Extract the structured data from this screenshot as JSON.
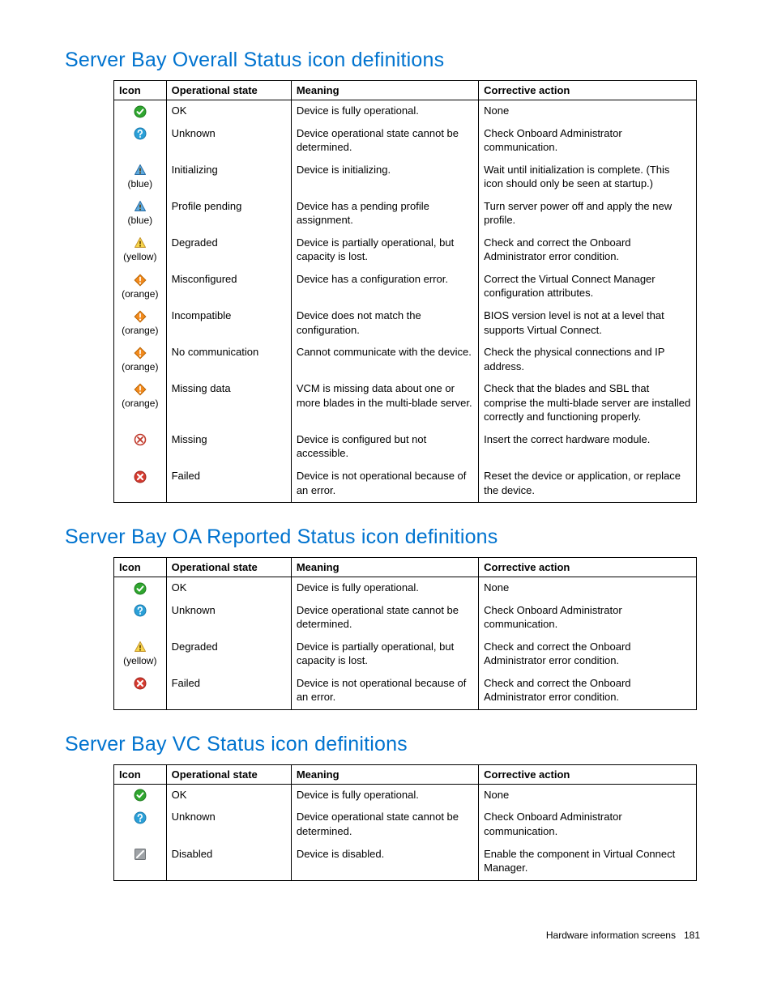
{
  "colors": {
    "heading": "#0073cf",
    "text": "#000000",
    "border": "#000000",
    "ok_fill": "#2fa62f",
    "ok_check": "#ffffff",
    "unknown_fill": "#2aa0d8",
    "unknown_glyph": "#ffffff",
    "blue_warn_fill": "#5da9dd",
    "blue_warn_border": "#2a6ea6",
    "yellow_warn_fill": "#f7d54a",
    "yellow_warn_border": "#c4952e",
    "orange_alert_fill": "#f28a1c",
    "orange_alert_glyph": "#ffffff",
    "missing_ring": "#c0392b",
    "missing_x": "#c0392b",
    "failed_fill": "#d63a2f",
    "failed_x": "#ffffff",
    "disabled_fill": "#9ea2a6",
    "disabled_slash": "#ffffff",
    "warn_bang": "#5a3a00"
  },
  "headers": [
    "Icon",
    "Operational state",
    "Meaning",
    "Corrective action"
  ],
  "sections": [
    {
      "title": "Server Bay Overall Status icon definitions",
      "rows": [
        {
          "icon": "ok",
          "caption": "",
          "state": "OK",
          "meaning": "Device is fully operational.",
          "action": "None"
        },
        {
          "icon": "unknown",
          "caption": "",
          "state": "Unknown",
          "meaning": "Device operational state cannot be determined.",
          "action": "Check Onboard Administrator communication."
        },
        {
          "icon": "warn-blue",
          "caption": "(blue)",
          "state": "Initializing",
          "meaning": "Device is initializing.",
          "action": "Wait until initialization is complete. (This icon should only be seen at startup.)"
        },
        {
          "icon": "warn-blue",
          "caption": "(blue)",
          "state": "Profile pending",
          "meaning": "Device has a pending profile assignment.",
          "action": "Turn server power off and apply the new profile."
        },
        {
          "icon": "warn-yellow",
          "caption": "(yellow)",
          "state": "Degraded",
          "meaning": "Device is partially operational, but capacity is lost.",
          "action": "Check and correct the Onboard Administrator error condition."
        },
        {
          "icon": "alert-orange",
          "caption": "(orange)",
          "state": "Misconfigured",
          "meaning": "Device has a configuration error.",
          "action": "Correct the Virtual Connect Manager configuration attributes."
        },
        {
          "icon": "alert-orange",
          "caption": "(orange)",
          "state": "Incompatible",
          "meaning": "Device does not match the configuration.",
          "action": "BIOS version level is not at a level that supports Virtual Connect."
        },
        {
          "icon": "alert-orange",
          "caption": "(orange)",
          "state": "No communication",
          "meaning": "Cannot communicate with the device.",
          "action": "Check the physical connections and IP address."
        },
        {
          "icon": "alert-orange",
          "caption": "(orange)",
          "state": "Missing data",
          "meaning": "VCM is missing data about one or more blades in the multi-blade server.",
          "action": "Check that the blades and SBL that comprise the multi-blade server are installed correctly and functioning properly."
        },
        {
          "icon": "missing",
          "caption": "",
          "state": "Missing",
          "meaning": "Device is configured but not accessible.",
          "action": "Insert the correct hardware module."
        },
        {
          "icon": "failed",
          "caption": "",
          "state": "Failed",
          "meaning": "Device is not operational because of an error.",
          "action": "Reset the device or application, or replace the device."
        }
      ]
    },
    {
      "title": "Server Bay OA Reported Status icon definitions",
      "rows": [
        {
          "icon": "ok",
          "caption": "",
          "state": "OK",
          "meaning": "Device is fully operational.",
          "action": "None"
        },
        {
          "icon": "unknown",
          "caption": "",
          "state": "Unknown",
          "meaning": "Device operational state cannot be determined.",
          "action": "Check Onboard Administrator communication."
        },
        {
          "icon": "warn-yellow",
          "caption": "(yellow)",
          "state": "Degraded",
          "meaning": "Device is partially operational, but capacity is lost.",
          "action": "Check and correct the Onboard Administrator error condition."
        },
        {
          "icon": "failed",
          "caption": "",
          "state": "Failed",
          "meaning": "Device is not operational because of an error.",
          "action": "Check and correct the Onboard Administrator error condition."
        }
      ]
    },
    {
      "title": "Server Bay VC Status icon definitions",
      "rows": [
        {
          "icon": "ok",
          "caption": "",
          "state": "OK",
          "meaning": "Device is fully operational.",
          "action": "None"
        },
        {
          "icon": "unknown",
          "caption": "",
          "state": "Unknown",
          "meaning": "Device operational state cannot be determined.",
          "action": "Check Onboard Administrator communication."
        },
        {
          "icon": "disabled",
          "caption": "",
          "state": "Disabled",
          "meaning": "Device is disabled.",
          "action": "Enable the component in Virtual Connect Manager."
        }
      ]
    }
  ],
  "footer": {
    "label": "Hardware information screens",
    "page": "181"
  }
}
